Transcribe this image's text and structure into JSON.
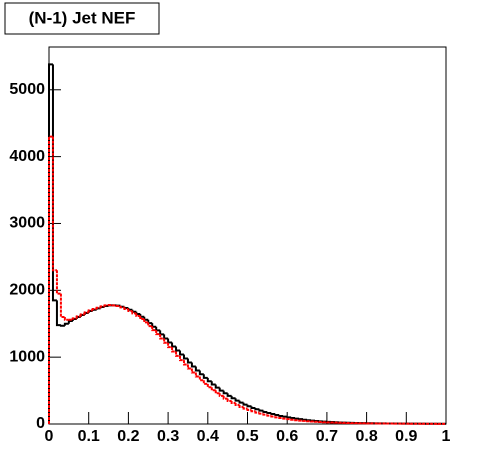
{
  "chart_data": {
    "type": "histogram",
    "title": "(N-1) Jet NEF",
    "bins": [
      0,
      0.01,
      0.02,
      0.03,
      0.04,
      0.05,
      0.06,
      0.07,
      0.08,
      0.09,
      0.1,
      0.11,
      0.12,
      0.13,
      0.14,
      0.15,
      0.16,
      0.17,
      0.18,
      0.19,
      0.2,
      0.21,
      0.22,
      0.23,
      0.24,
      0.25,
      0.26,
      0.27,
      0.28,
      0.29,
      0.3,
      0.31,
      0.32,
      0.33,
      0.34,
      0.35,
      0.36,
      0.37,
      0.38,
      0.39,
      0.4,
      0.41,
      0.42,
      0.43,
      0.44,
      0.45,
      0.46,
      0.47,
      0.48,
      0.49,
      0.5,
      0.51,
      0.52,
      0.53,
      0.54,
      0.55,
      0.56,
      0.57,
      0.58,
      0.59,
      0.6,
      0.61,
      0.62,
      0.63,
      0.64,
      0.65,
      0.66,
      0.67,
      0.68,
      0.69,
      0.7,
      0.71,
      0.72,
      0.73,
      0.74,
      0.75,
      0.76,
      0.77,
      0.78,
      0.79,
      0.8,
      0.81,
      0.82,
      0.83,
      0.84,
      0.85,
      0.86,
      0.87,
      0.88,
      0.89,
      0.9,
      0.91,
      0.92,
      0.93,
      0.94,
      0.95,
      0.96,
      0.97,
      0.98,
      0.99,
      1
    ],
    "series": [
      {
        "color": "#000000",
        "values": [
          5380,
          1850,
          1480,
          1470,
          1500,
          1540,
          1570,
          1600,
          1630,
          1660,
          1690,
          1710,
          1730,
          1750,
          1765,
          1775,
          1775,
          1770,
          1755,
          1735,
          1710,
          1680,
          1645,
          1605,
          1560,
          1510,
          1455,
          1400,
          1340,
          1280,
          1220,
          1160,
          1100,
          1040,
          980,
          920,
          860,
          800,
          745,
          690,
          640,
          590,
          545,
          500,
          460,
          420,
          385,
          350,
          320,
          290,
          265,
          240,
          220,
          200,
          180,
          165,
          150,
          135,
          120,
          110,
          100,
          90,
          80,
          72,
          64,
          57,
          51,
          45,
          40,
          36,
          32,
          29,
          26,
          23,
          21,
          19,
          17,
          15,
          14,
          13,
          12,
          11,
          10,
          9,
          9,
          8,
          8,
          7,
          7,
          6,
          6,
          6,
          5,
          5,
          5,
          4,
          4,
          4,
          3,
          3
        ]
      },
      {
        "color": "#ff0000",
        "values": [
          4300,
          2300,
          1950,
          1600,
          1560,
          1560,
          1580,
          1610,
          1640,
          1670,
          1700,
          1720,
          1740,
          1760,
          1775,
          1780,
          1775,
          1765,
          1745,
          1720,
          1690,
          1655,
          1615,
          1570,
          1520,
          1465,
          1405,
          1345,
          1280,
          1215,
          1150,
          1085,
          1020,
          955,
          890,
          830,
          770,
          710,
          655,
          600,
          550,
          505,
          460,
          420,
          380,
          345,
          315,
          285,
          255,
          230,
          210,
          190,
          170,
          155,
          140,
          125,
          112,
          100,
          90,
          80,
          72,
          64,
          57,
          51,
          46,
          41,
          37,
          33,
          30,
          27,
          24,
          22,
          20,
          18,
          16,
          15,
          14,
          13,
          12,
          11,
          10,
          9,
          9,
          8,
          8,
          7,
          7,
          6,
          6,
          5,
          5,
          4,
          4,
          4,
          3,
          3,
          3,
          3,
          2,
          2
        ]
      }
    ],
    "xlim": [
      0,
      1
    ],
    "xticks": [
      0,
      0.1,
      0.2,
      0.3,
      0.4,
      0.5,
      0.6,
      0.7,
      0.8,
      0.9,
      1
    ],
    "ylim": [
      0,
      5640
    ],
    "yticks": [
      0,
      1000,
      2000,
      3000,
      4000,
      5000
    ]
  }
}
